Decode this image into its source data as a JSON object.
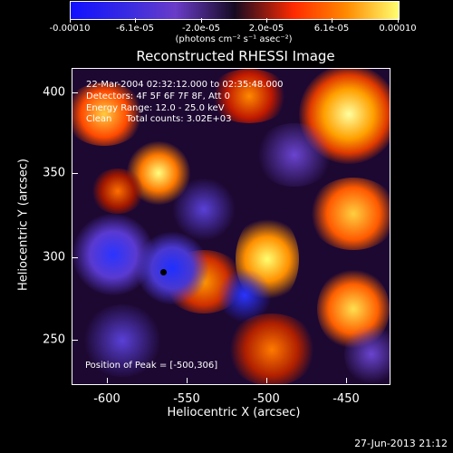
{
  "colorbar": {
    "labels": [
      "-0.00010",
      "-6.1e-05",
      "-2.0e-05",
      "2.0e-05",
      "6.1e-05",
      "0.00010"
    ],
    "units": "(photons cm⁻² s⁻¹ asec⁻²)",
    "colors": [
      "#1010ff",
      "#6a3cc8",
      "#150a22",
      "#ff2a00",
      "#ff8a00",
      "#ffff70"
    ]
  },
  "title": "Reconstructed RHESSI Image",
  "info": {
    "line1": "22-Mar-2004 02:32:12.000 to 02:35:48.000",
    "line2": "Detectors: 4F 5F 6F 7F 8F, Att 0",
    "line3": "Energy Range: 12.0 - 25.0 keV",
    "line4": "Clean     Total counts: 3.02E+03"
  },
  "peak": "Position of Peak = [-500,306]",
  "axes": {
    "xlabel": "Heliocentric X (arcsec)",
    "ylabel": "Heliocentric Y (arcsec)",
    "xticks": [
      "-600",
      "-550",
      "-500",
      "-450"
    ],
    "yticks": [
      "400",
      "350",
      "300",
      "250"
    ]
  },
  "footer": "27-Jun-2013 21:12"
}
